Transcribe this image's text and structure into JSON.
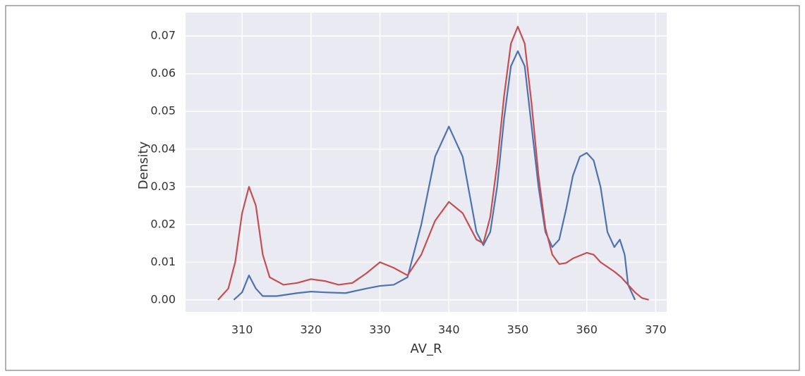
{
  "chart_data": {
    "type": "line",
    "x_label": "AV_R",
    "y_label": "Density",
    "xlim": [
      301.8,
      371.6
    ],
    "ylim": [
      -0.0032,
      0.0762
    ],
    "xticks": [
      310,
      320,
      330,
      340,
      350,
      360,
      370
    ],
    "yticks": [
      {
        "value": 0,
        "label": "0.00"
      },
      0.01,
      0.02,
      0.03,
      0.04,
      0.05,
      0.06,
      0.07
    ],
    "grid": true,
    "series": [
      {
        "color": "#4c72b0",
        "x": [
          308.8,
          310,
          311,
          312,
          313,
          315,
          318,
          320,
          322,
          325,
          328,
          330,
          332,
          334,
          336,
          338,
          340,
          342,
          344,
          345,
          346,
          347,
          348,
          349,
          350,
          351,
          352,
          353,
          354,
          355,
          356,
          357,
          358,
          359,
          360,
          361,
          362,
          363,
          364,
          364.8,
          365.5,
          366,
          367
        ],
        "values": [
          0,
          0.002,
          0.0065,
          0.003,
          0.001,
          0.001,
          0.0018,
          0.0022,
          0.002,
          0.0018,
          0.003,
          0.0037,
          0.004,
          0.006,
          0.02,
          0.038,
          0.046,
          0.038,
          0.018,
          0.0145,
          0.018,
          0.03,
          0.048,
          0.062,
          0.066,
          0.062,
          0.046,
          0.03,
          0.018,
          0.014,
          0.016,
          0.024,
          0.033,
          0.038,
          0.039,
          0.037,
          0.03,
          0.018,
          0.014,
          0.016,
          0.012,
          0.004,
          0
        ]
      },
      {
        "color": "#c44e52",
        "x": [
          306.5,
          308,
          309,
          310,
          311,
          312,
          313,
          314,
          316,
          318,
          320,
          322,
          324,
          326,
          328,
          330,
          332,
          334,
          336,
          338,
          340,
          342,
          344,
          345,
          346,
          347,
          348,
          349,
          350,
          351,
          352,
          353,
          354,
          355,
          356,
          357,
          358,
          360,
          361,
          362,
          364,
          365,
          366,
          367,
          368,
          369
        ],
        "values": [
          0,
          0.003,
          0.01,
          0.023,
          0.03,
          0.025,
          0.012,
          0.006,
          0.004,
          0.0045,
          0.0055,
          0.005,
          0.004,
          0.0045,
          0.007,
          0.01,
          0.0085,
          0.0065,
          0.012,
          0.021,
          0.026,
          0.023,
          0.016,
          0.015,
          0.022,
          0.036,
          0.054,
          0.068,
          0.0725,
          0.068,
          0.052,
          0.033,
          0.019,
          0.012,
          0.0095,
          0.0098,
          0.011,
          0.0125,
          0.012,
          0.01,
          0.0075,
          0.006,
          0.004,
          0.002,
          0.0005,
          0
        ]
      }
    ]
  }
}
